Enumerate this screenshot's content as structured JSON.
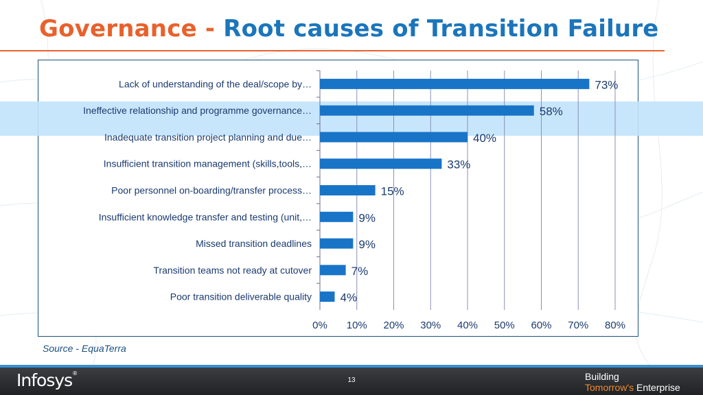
{
  "slide": {
    "title_part1": "Governance",
    "title_sep": " - ",
    "title_part2": "Root causes of Transition Failure",
    "page_number": "13"
  },
  "source": {
    "label": "Source -",
    "value": "EquaTerra"
  },
  "footer": {
    "logo_text": "Infosys",
    "logo_mark": "®",
    "tagline_line1": "Building",
    "tagline_line2_accent": "Tomorrow's",
    "tagline_line2_rest": "Enterprise"
  },
  "colors": {
    "title_orange": "#e8612c",
    "title_blue": "#1b75bb",
    "bar_blue": "#1874c7",
    "highlight": "#c2e3fb"
  },
  "chart_data": {
    "type": "bar",
    "orientation": "horizontal",
    "categories": [
      "Lack of understanding of the deal/scope by…",
      "Ineffective relationship and programme governance…",
      "Inadequate transition project planning and due…",
      "Insufficient transition management (skills,tools,…",
      "Poor  personnel on-boarding/transfer process…",
      "Insufficient knowledge transfer and testing (unit,…",
      "Missed transition deadlines",
      "Transition teams not ready at cutover",
      "Poor transition deliverable quality"
    ],
    "values": [
      73,
      58,
      40,
      33,
      15,
      9,
      9,
      7,
      4
    ],
    "data_labels": [
      "73%",
      "58%",
      "40%",
      "33%",
      "15%",
      "9%",
      "9%",
      "7%",
      "4%"
    ],
    "xlim": [
      0,
      80
    ],
    "xticks": [
      0,
      10,
      20,
      30,
      40,
      50,
      60,
      70,
      80
    ],
    "xtick_labels": [
      "0%",
      "10%",
      "20%",
      "30%",
      "40%",
      "50%",
      "60%",
      "70%",
      "80%"
    ],
    "highlighted_categories": [
      1,
      2
    ],
    "grid": true,
    "legend": "none"
  }
}
